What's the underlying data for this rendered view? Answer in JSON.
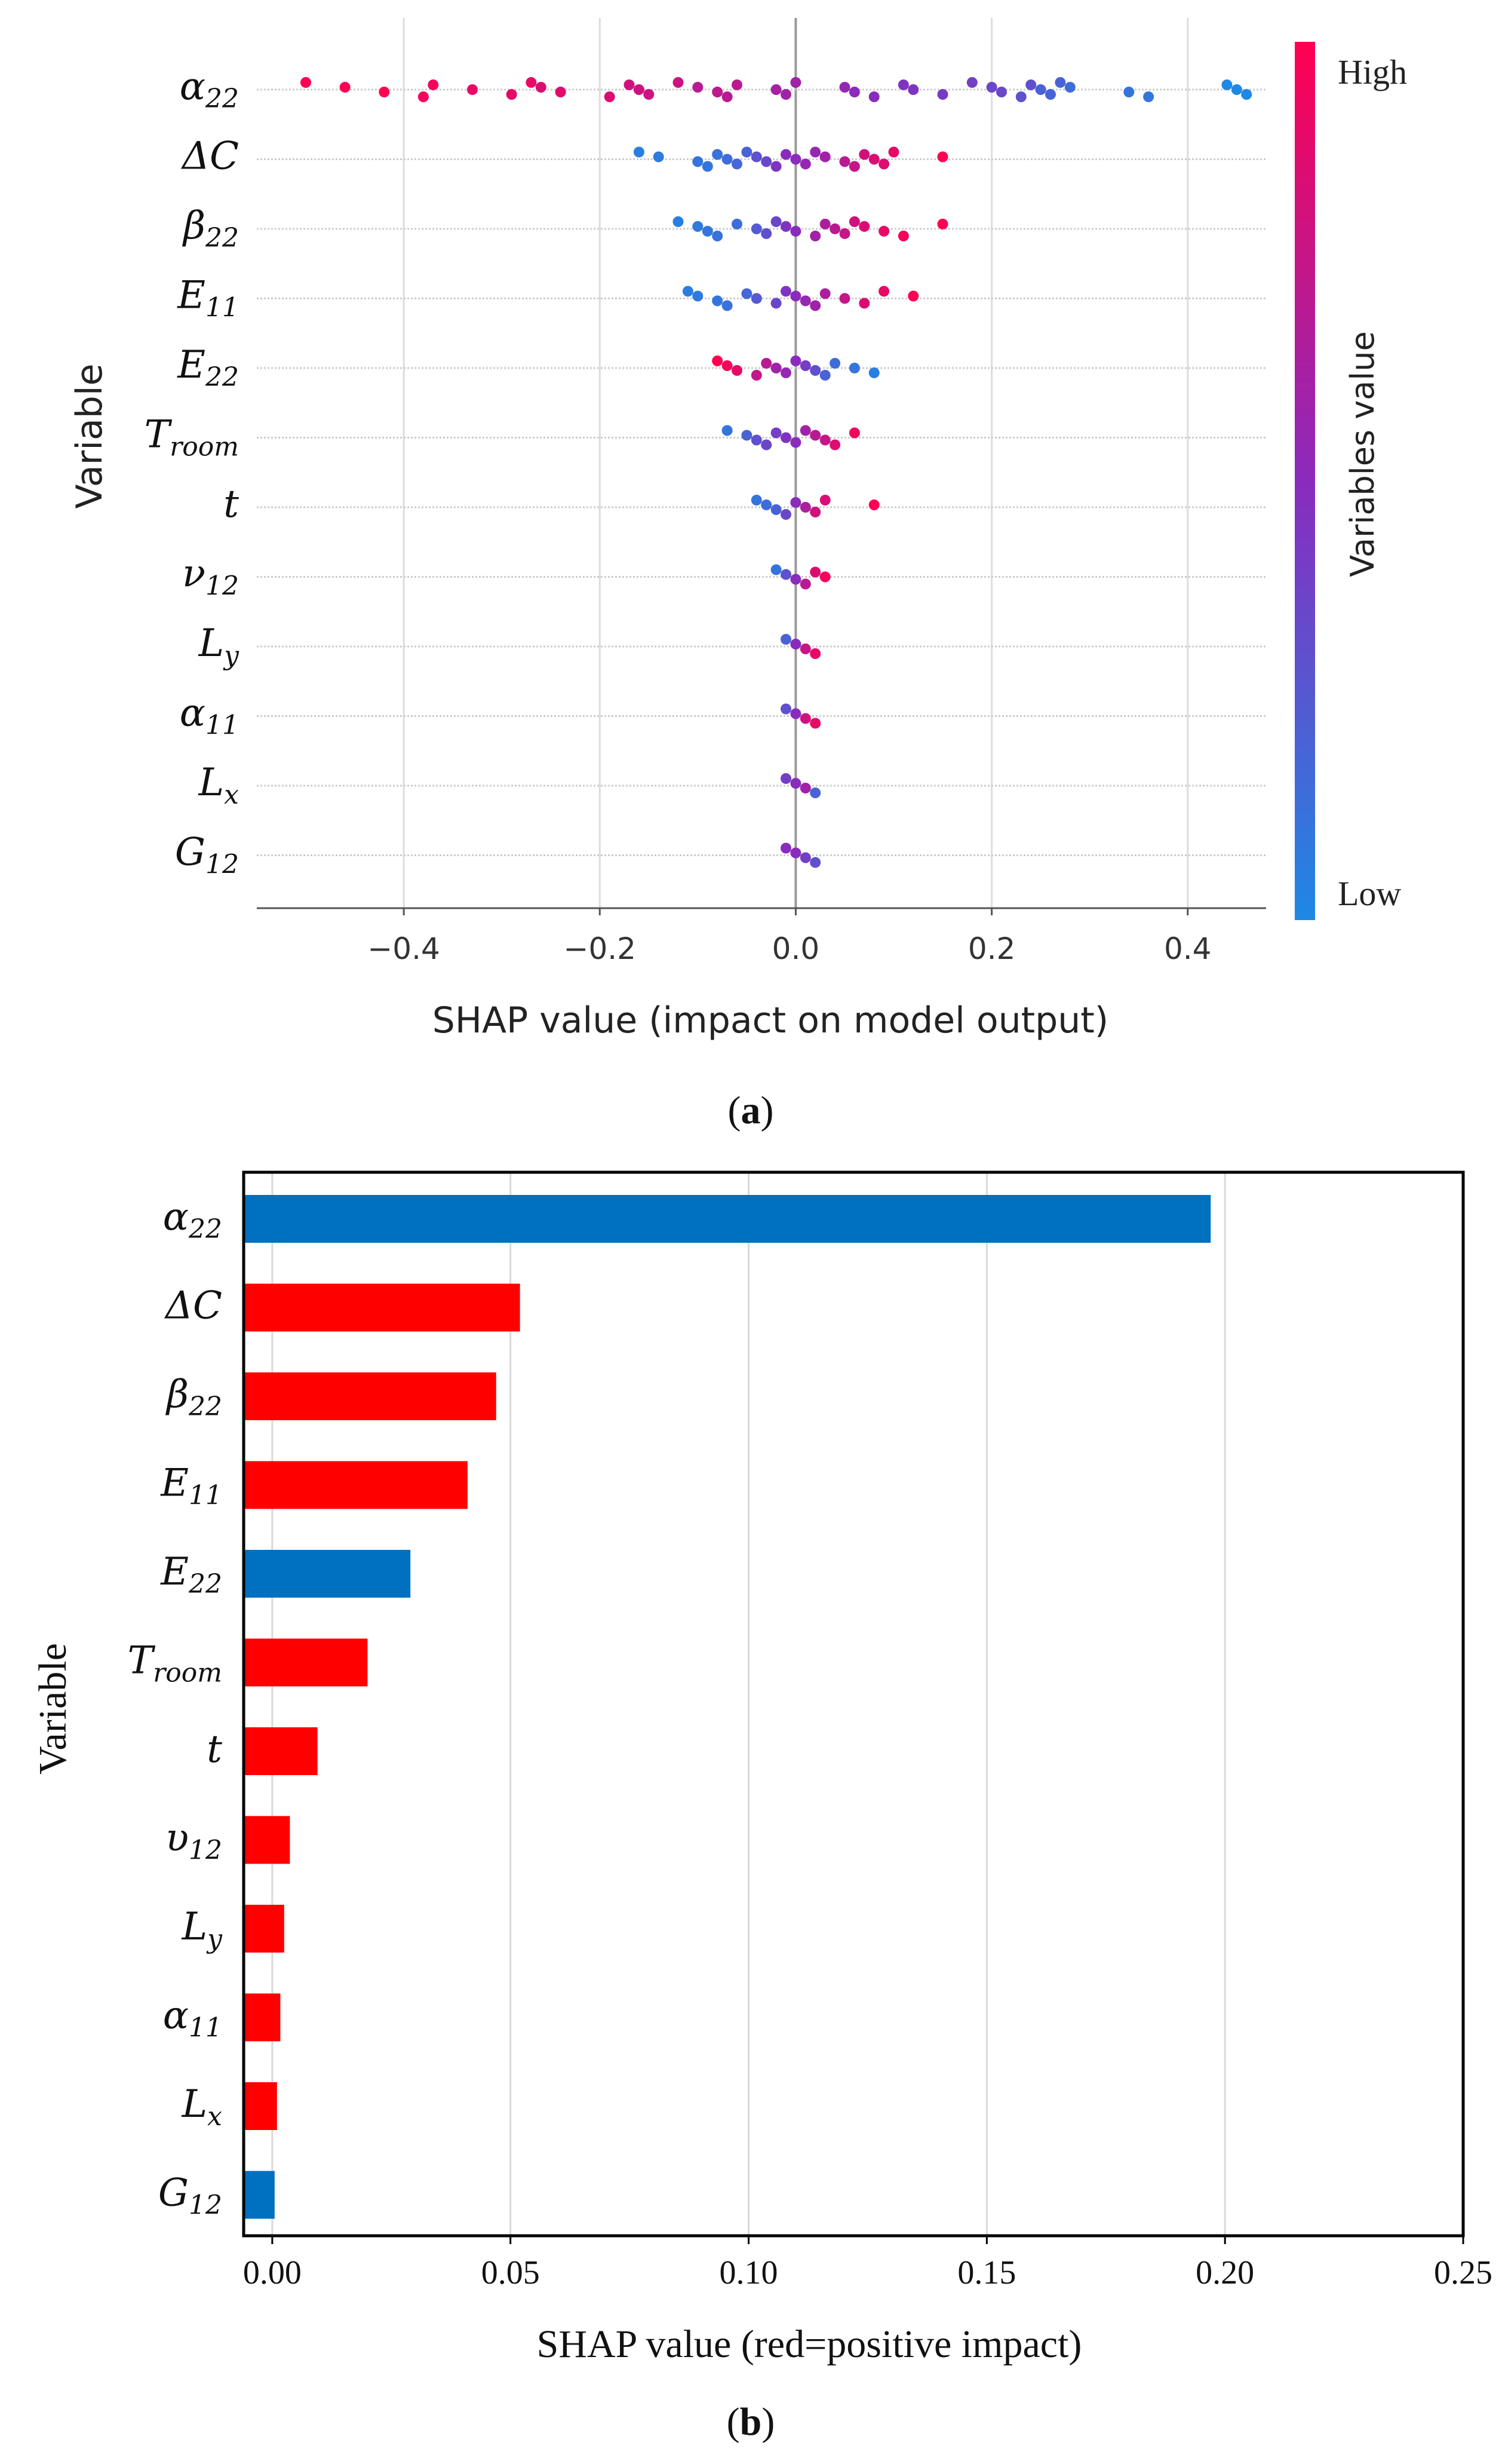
{
  "chart_data": [
    {
      "type": "scatter",
      "panel_label": "a",
      "xlabel": "SHAP  value (impact on model output)",
      "ylabel": "Variable",
      "xlim": [
        -0.55,
        0.48
      ],
      "xticks": [
        {
          "value": -0.4,
          "label": "−0.4"
        },
        {
          "value": -0.2,
          "label": "−0.2"
        },
        {
          "value": 0.0,
          "label": "0.0"
        },
        {
          "value": 0.2,
          "label": "0.2"
        },
        {
          "value": 0.4,
          "label": "0.4"
        }
      ],
      "grid": "vertical and horizontal light grey lines",
      "colorbar": {
        "title": "Variables value",
        "high_label": "High",
        "low_label": "Low",
        "high_color": "#ff0052",
        "mid_color": "#8a2bbd",
        "low_color": "#1e88e5"
      },
      "categories": [
        {
          "base": "α",
          "sub": "22"
        },
        {
          "base": "ΔC",
          "sub": ""
        },
        {
          "base": "β",
          "sub": "22"
        },
        {
          "base": "E",
          "sub": "11"
        },
        {
          "base": "E",
          "sub": "22"
        },
        {
          "base": "T",
          "sub": "room"
        },
        {
          "base": "t",
          "sub": ""
        },
        {
          "base": "ν",
          "sub": "12"
        },
        {
          "base": "L",
          "sub": "y"
        },
        {
          "base": "α",
          "sub": "11"
        },
        {
          "base": "L",
          "sub": "x"
        },
        {
          "base": "G",
          "sub": "12"
        }
      ],
      "series": [
        {
          "variable_index": 0,
          "points": [
            [
              -0.5,
              1.0
            ],
            [
              -0.46,
              1.0
            ],
            [
              -0.42,
              1.0
            ],
            [
              -0.38,
              0.95
            ],
            [
              -0.37,
              0.95
            ],
            [
              -0.33,
              0.9
            ],
            [
              -0.29,
              0.9
            ],
            [
              -0.27,
              0.9
            ],
            [
              -0.26,
              0.85
            ],
            [
              -0.24,
              0.88
            ],
            [
              -0.19,
              0.85
            ],
            [
              -0.17,
              0.8
            ],
            [
              -0.16,
              0.8
            ],
            [
              -0.15,
              0.78
            ],
            [
              -0.12,
              0.78
            ],
            [
              -0.1,
              0.7
            ],
            [
              -0.08,
              0.72
            ],
            [
              -0.07,
              0.7
            ],
            [
              -0.06,
              0.7
            ],
            [
              -0.02,
              0.62
            ],
            [
              -0.01,
              0.6
            ],
            [
              0.0,
              0.6
            ],
            [
              0.05,
              0.55
            ],
            [
              0.06,
              0.5
            ],
            [
              0.08,
              0.5
            ],
            [
              0.11,
              0.45
            ],
            [
              0.12,
              0.45
            ],
            [
              0.15,
              0.42
            ],
            [
              0.18,
              0.4
            ],
            [
              0.2,
              0.35
            ],
            [
              0.21,
              0.35
            ],
            [
              0.23,
              0.3
            ],
            [
              0.24,
              0.3
            ],
            [
              0.25,
              0.2
            ],
            [
              0.26,
              0.2
            ],
            [
              0.27,
              0.2
            ],
            [
              0.28,
              0.15
            ],
            [
              0.34,
              0.1
            ],
            [
              0.36,
              0.1
            ],
            [
              0.44,
              0.0
            ],
            [
              0.45,
              0.0
            ],
            [
              0.46,
              0.0
            ]
          ]
        },
        {
          "variable_index": 1,
          "points": [
            [
              -0.16,
              0.05
            ],
            [
              -0.14,
              0.08
            ],
            [
              -0.1,
              0.1
            ],
            [
              -0.09,
              0.1
            ],
            [
              -0.08,
              0.12
            ],
            [
              -0.07,
              0.15
            ],
            [
              -0.06,
              0.18
            ],
            [
              -0.05,
              0.2
            ],
            [
              -0.04,
              0.3
            ],
            [
              -0.03,
              0.35
            ],
            [
              -0.02,
              0.45
            ],
            [
              -0.01,
              0.5
            ],
            [
              0.0,
              0.5
            ],
            [
              0.01,
              0.55
            ],
            [
              0.02,
              0.55
            ],
            [
              0.03,
              0.6
            ],
            [
              0.05,
              0.7
            ],
            [
              0.06,
              0.75
            ],
            [
              0.07,
              0.8
            ],
            [
              0.08,
              0.85
            ],
            [
              0.09,
              0.85
            ],
            [
              0.1,
              0.9
            ],
            [
              0.15,
              1.0
            ]
          ]
        },
        {
          "variable_index": 2,
          "points": [
            [
              -0.12,
              0.05
            ],
            [
              -0.1,
              0.08
            ],
            [
              -0.09,
              0.1
            ],
            [
              -0.08,
              0.12
            ],
            [
              -0.06,
              0.15
            ],
            [
              -0.04,
              0.25
            ],
            [
              -0.03,
              0.3
            ],
            [
              -0.02,
              0.35
            ],
            [
              -0.01,
              0.45
            ],
            [
              0.0,
              0.5
            ],
            [
              0.02,
              0.6
            ],
            [
              0.03,
              0.65
            ],
            [
              0.04,
              0.7
            ],
            [
              0.05,
              0.75
            ],
            [
              0.06,
              0.8
            ],
            [
              0.07,
              0.85
            ],
            [
              0.09,
              0.9
            ],
            [
              0.11,
              0.95
            ],
            [
              0.15,
              1.0
            ]
          ]
        },
        {
          "variable_index": 3,
          "points": [
            [
              -0.11,
              0.05
            ],
            [
              -0.1,
              0.08
            ],
            [
              -0.08,
              0.1
            ],
            [
              -0.07,
              0.12
            ],
            [
              -0.05,
              0.18
            ],
            [
              -0.04,
              0.25
            ],
            [
              -0.02,
              0.35
            ],
            [
              -0.01,
              0.45
            ],
            [
              0.0,
              0.5
            ],
            [
              0.01,
              0.55
            ],
            [
              0.02,
              0.6
            ],
            [
              0.03,
              0.65
            ],
            [
              0.05,
              0.75
            ],
            [
              0.07,
              0.85
            ],
            [
              0.09,
              0.9
            ],
            [
              0.12,
              1.0
            ]
          ]
        },
        {
          "variable_index": 4,
          "points": [
            [
              -0.08,
              1.0
            ],
            [
              -0.07,
              0.95
            ],
            [
              -0.06,
              0.9
            ],
            [
              -0.04,
              0.75
            ],
            [
              -0.03,
              0.7
            ],
            [
              -0.02,
              0.6
            ],
            [
              -0.01,
              0.55
            ],
            [
              0.0,
              0.5
            ],
            [
              0.01,
              0.4
            ],
            [
              0.02,
              0.3
            ],
            [
              0.03,
              0.2
            ],
            [
              0.04,
              0.15
            ],
            [
              0.06,
              0.1
            ],
            [
              0.08,
              0.05
            ]
          ]
        },
        {
          "variable_index": 5,
          "points": [
            [
              -0.07,
              0.1
            ],
            [
              -0.05,
              0.2
            ],
            [
              -0.04,
              0.3
            ],
            [
              -0.03,
              0.35
            ],
            [
              -0.02,
              0.4
            ],
            [
              -0.01,
              0.45
            ],
            [
              0.0,
              0.5
            ],
            [
              0.01,
              0.6
            ],
            [
              0.02,
              0.7
            ],
            [
              0.03,
              0.75
            ],
            [
              0.04,
              0.85
            ],
            [
              0.06,
              0.95
            ]
          ]
        },
        {
          "variable_index": 6,
          "points": [
            [
              -0.04,
              0.1
            ],
            [
              -0.03,
              0.15
            ],
            [
              -0.02,
              0.2
            ],
            [
              -0.01,
              0.35
            ],
            [
              0.0,
              0.5
            ],
            [
              0.01,
              0.65
            ],
            [
              0.02,
              0.8
            ],
            [
              0.03,
              0.85
            ],
            [
              0.08,
              1.0
            ]
          ]
        },
        {
          "variable_index": 7,
          "points": [
            [
              -0.02,
              0.1
            ],
            [
              -0.01,
              0.3
            ],
            [
              0.0,
              0.5
            ],
            [
              0.01,
              0.7
            ],
            [
              0.02,
              0.85
            ],
            [
              0.03,
              0.95
            ]
          ]
        },
        {
          "variable_index": 8,
          "points": [
            [
              -0.01,
              0.2
            ],
            [
              0.0,
              0.5
            ],
            [
              0.01,
              0.75
            ],
            [
              0.02,
              0.9
            ]
          ]
        },
        {
          "variable_index": 9,
          "points": [
            [
              -0.01,
              0.3
            ],
            [
              0.0,
              0.5
            ],
            [
              0.01,
              0.8
            ],
            [
              0.02,
              0.9
            ]
          ]
        },
        {
          "variable_index": 10,
          "points": [
            [
              -0.01,
              0.4
            ],
            [
              0.0,
              0.5
            ],
            [
              0.01,
              0.6
            ],
            [
              0.02,
              0.2
            ]
          ]
        },
        {
          "variable_index": 11,
          "points": [
            [
              -0.01,
              0.5
            ],
            [
              0.0,
              0.5
            ],
            [
              0.01,
              0.4
            ],
            [
              0.02,
              0.3
            ]
          ]
        }
      ]
    },
    {
      "type": "bar",
      "orientation": "horizontal",
      "panel_label": "b",
      "xlabel": "SHAP  value (red=positive impact)",
      "ylabel": "Variable",
      "xlim": [
        -0.006,
        0.25
      ],
      "xticks": [
        {
          "value": 0.0,
          "label": "0.00"
        },
        {
          "value": 0.05,
          "label": "0.05"
        },
        {
          "value": 0.1,
          "label": "0.10"
        },
        {
          "value": 0.15,
          "label": "0.15"
        },
        {
          "value": 0.2,
          "label": "0.20"
        },
        {
          "value": 0.25,
          "label": "0.25"
        }
      ],
      "grid": "vertical light grey lines",
      "positive_color": "#ff0000",
      "negative_color": "#0070c0",
      "bars": [
        {
          "base": "α",
          "sub": "22",
          "value": 0.197,
          "sign": "negative"
        },
        {
          "base": "ΔC",
          "sub": "",
          "value": 0.052,
          "sign": "positive"
        },
        {
          "base": "β",
          "sub": "22",
          "value": 0.047,
          "sign": "positive"
        },
        {
          "base": "E",
          "sub": "11",
          "value": 0.041,
          "sign": "positive"
        },
        {
          "base": "E",
          "sub": "22",
          "value": 0.029,
          "sign": "negative"
        },
        {
          "base": "T",
          "sub": "room",
          "value": 0.02,
          "sign": "positive"
        },
        {
          "base": "t",
          "sub": "",
          "value": 0.0095,
          "sign": "positive"
        },
        {
          "base": "υ",
          "sub": "12",
          "value": 0.0037,
          "sign": "positive"
        },
        {
          "base": "L",
          "sub": "y",
          "value": 0.0025,
          "sign": "positive"
        },
        {
          "base": "α",
          "sub": "11",
          "value": 0.0017,
          "sign": "positive"
        },
        {
          "base": "L",
          "sub": "x",
          "value": 0.001,
          "sign": "positive"
        },
        {
          "base": "G",
          "sub": "12",
          "value": 0.0005,
          "sign": "negative"
        }
      ]
    }
  ]
}
